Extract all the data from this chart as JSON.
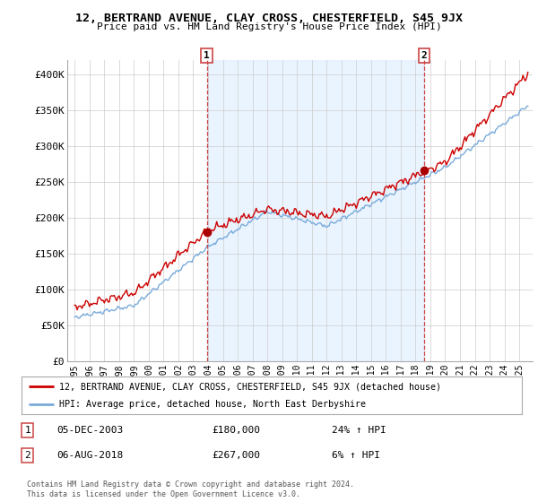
{
  "title": "12, BERTRAND AVENUE, CLAY CROSS, CHESTERFIELD, S45 9JX",
  "subtitle": "Price paid vs. HM Land Registry's House Price Index (HPI)",
  "ylabel_ticks": [
    "£0",
    "£50K",
    "£100K",
    "£150K",
    "£200K",
    "£250K",
    "£300K",
    "£350K",
    "£400K"
  ],
  "ytick_values": [
    0,
    50000,
    100000,
    150000,
    200000,
    250000,
    300000,
    350000,
    400000
  ],
  "ylim": [
    0,
    420000
  ],
  "t1": 2003.917,
  "t2": 2018.583,
  "sale1_price": 180000,
  "sale2_price": 267000,
  "legend_line1": "12, BERTRAND AVENUE, CLAY CROSS, CHESTERFIELD, S45 9JX (detached house)",
  "legend_line2": "HPI: Average price, detached house, North East Derbyshire",
  "footer": "Contains HM Land Registry data © Crown copyright and database right 2024.\nThis data is licensed under the Open Government Licence v3.0.",
  "line_color_red": "#cc0000",
  "line_color_blue": "#7aabda",
  "fill_color_blue": "#ddeeff",
  "bg_color": "#ffffff",
  "grid_color": "#cccccc",
  "sale_marker_color": "#aa0000",
  "sale_vline_color": "#cc4444",
  "table1_date": "05-DEC-2003",
  "table1_price": "£180,000",
  "table1_hpi": "24% ↑ HPI",
  "table2_date": "06-AUG-2018",
  "table2_price": "£267,000",
  "table2_hpi": "6% ↑ HPI"
}
